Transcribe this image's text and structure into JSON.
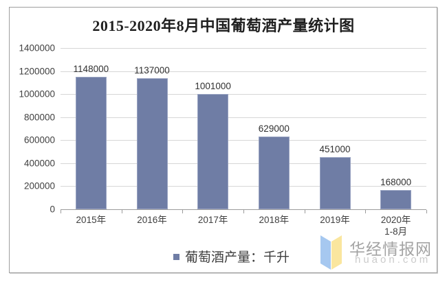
{
  "chart_data": {
    "type": "bar",
    "title": "2015-2020年8月中国葡萄酒产量统计图",
    "categories": [
      "2015年",
      "2016年",
      "2017年",
      "2018年",
      "2019年",
      "2020年\n1-8月"
    ],
    "values": [
      1148000,
      1137000,
      1001000,
      629000,
      451000,
      168000
    ],
    "data_labels": [
      "1148000",
      "1137000",
      "1001000",
      "629000",
      "451000",
      "168000"
    ],
    "legend_label": "葡萄酒产量：千升",
    "legend_position": "bottom-center",
    "xlabel": "",
    "ylabel": "",
    "ylim": [
      0,
      1400000
    ],
    "ytick_interval": 200000,
    "ytick_labels": [
      "0",
      "200000",
      "400000",
      "600000",
      "800000",
      "1000000",
      "1200000",
      "1400000"
    ],
    "grid": "horizontal",
    "bar_color": "#6f7da5",
    "bar_edge_color": "#9aa4c2",
    "gridline_color": "#d6d6d6",
    "axis_color": "#9b9b9b",
    "label_color": "#3f3f3f"
  },
  "watermark": {
    "site_name": "华经情报网",
    "site_domain": "huaon.com",
    "logo_color_left": "#a6c8f0",
    "logo_color_right": "#fae69e",
    "name_color": "#a3a3a3",
    "domain_color": "#cbcbcb"
  }
}
